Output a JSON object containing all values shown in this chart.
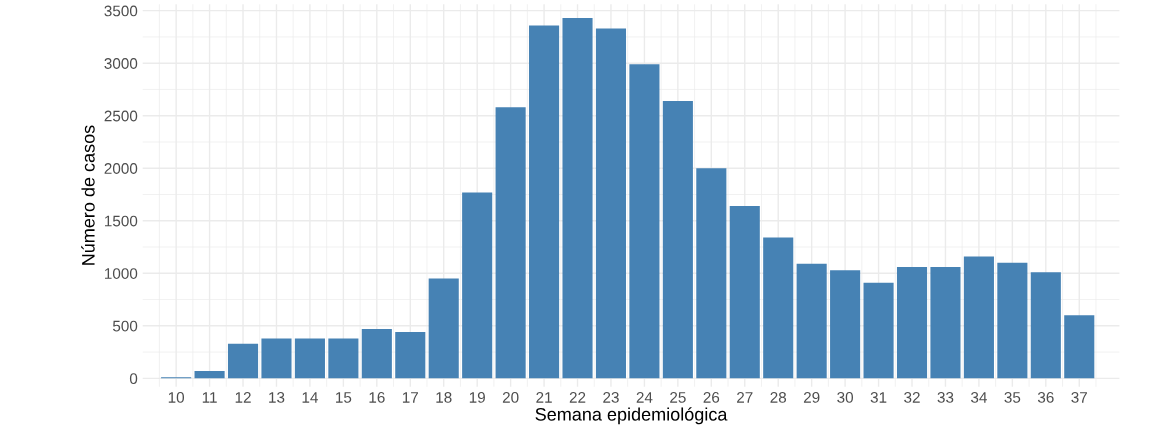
{
  "chart_data": {
    "type": "bar",
    "xlabel": "Semana epidemiológica",
    "ylabel": "Número de casos",
    "categories": [
      "10",
      "11",
      "12",
      "13",
      "14",
      "15",
      "16",
      "17",
      "18",
      "19",
      "20",
      "21",
      "22",
      "23",
      "24",
      "25",
      "26",
      "27",
      "28",
      "29",
      "30",
      "31",
      "32",
      "33",
      "34",
      "35",
      "36",
      "37"
    ],
    "values": [
      10,
      70,
      330,
      380,
      380,
      380,
      470,
      440,
      950,
      1770,
      2580,
      3360,
      3430,
      3330,
      2990,
      2640,
      2000,
      1640,
      1340,
      1090,
      1030,
      910,
      1060,
      1060,
      1160,
      1100,
      1010,
      600
    ],
    "color": "#4682b4",
    "ylim": [
      -80,
      3560
    ],
    "yticks": [
      0,
      500,
      1000,
      1500,
      2000,
      2500,
      3000,
      3500
    ],
    "grid": true
  }
}
